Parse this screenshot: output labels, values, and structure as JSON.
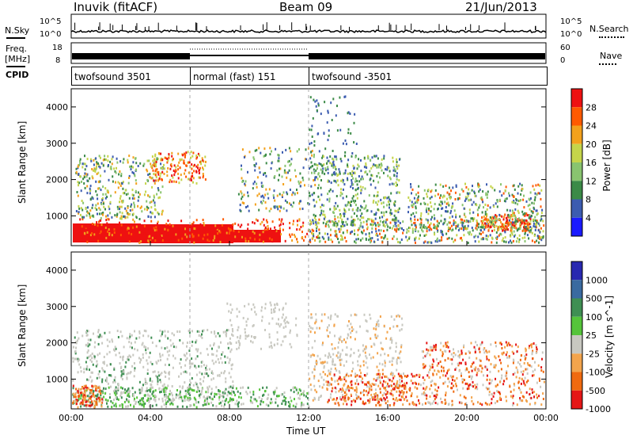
{
  "header": {
    "station": "Inuvik (fitACF)",
    "beam": "Beam 09",
    "date": "21/Jun/2013"
  },
  "top_panels": {
    "nsky_label": "N.Sky",
    "nsky_ticks": [
      "10^5",
      "10^0"
    ],
    "nsearch_label": "N.Search",
    "nsearch_ticks": [
      "10^5",
      "10^0"
    ],
    "freq_label_1": "Freq.",
    "freq_label_2": "[MHz]",
    "freq_ticks": [
      "18",
      "8"
    ],
    "nave_label": "Nave",
    "nave_ticks": [
      "60",
      "0"
    ],
    "cpid_label": "CPID",
    "cpid_segments": [
      {
        "label": "twofsound 3501",
        "start": 0,
        "end": 6
      },
      {
        "label": "normal (fast) 151",
        "start": 6,
        "end": 12
      },
      {
        "label": "twofsound -3501",
        "start": 12,
        "end": 24
      }
    ]
  },
  "power_colorbar": {
    "label": "Power [dB]",
    "ticks": [
      "28",
      "24",
      "20",
      "16",
      "12",
      "8",
      "4"
    ],
    "colors": [
      "#ee1111",
      "#ff5a00",
      "#f3a11c",
      "#c5d44a",
      "#89c46f",
      "#3b8a47",
      "#3c5cb0",
      "#1a1aff"
    ]
  },
  "velocity_colorbar": {
    "label": "Velocity [m s^-1]",
    "ticks": [
      "1000",
      "500",
      "100",
      "25",
      "-25",
      "-100",
      "-500",
      "-1000"
    ],
    "colors": [
      "#2828b0",
      "#3a6aa0",
      "#3f8f53",
      "#55c43a",
      "#c8c8c0",
      "#f3a44c",
      "#f06a10",
      "#e51616"
    ]
  },
  "chart_data": [
    {
      "type": "heatmap",
      "title": "Power",
      "ylabel": "Slant Range [km]",
      "xlabel": "",
      "xlim": [
        0,
        24
      ],
      "ylim": [
        180,
        4500
      ],
      "yticks": [
        "1000",
        "2000",
        "3000",
        "4000"
      ],
      "grid": false,
      "colorbar": "Power [dB]"
    },
    {
      "type": "heatmap",
      "title": "Velocity",
      "ylabel": "Slant Range [km]",
      "xlabel": "Time UT",
      "xlim": [
        0,
        24
      ],
      "ylim": [
        180,
        4500
      ],
      "xticks": [
        "00:00",
        "04:00",
        "08:00",
        "12:00",
        "16:00",
        "20:00",
        "00:00"
      ],
      "yticks": [
        "1000",
        "2000",
        "3000",
        "4000"
      ],
      "grid": false,
      "colorbar": "Velocity [m s^-1]"
    }
  ]
}
